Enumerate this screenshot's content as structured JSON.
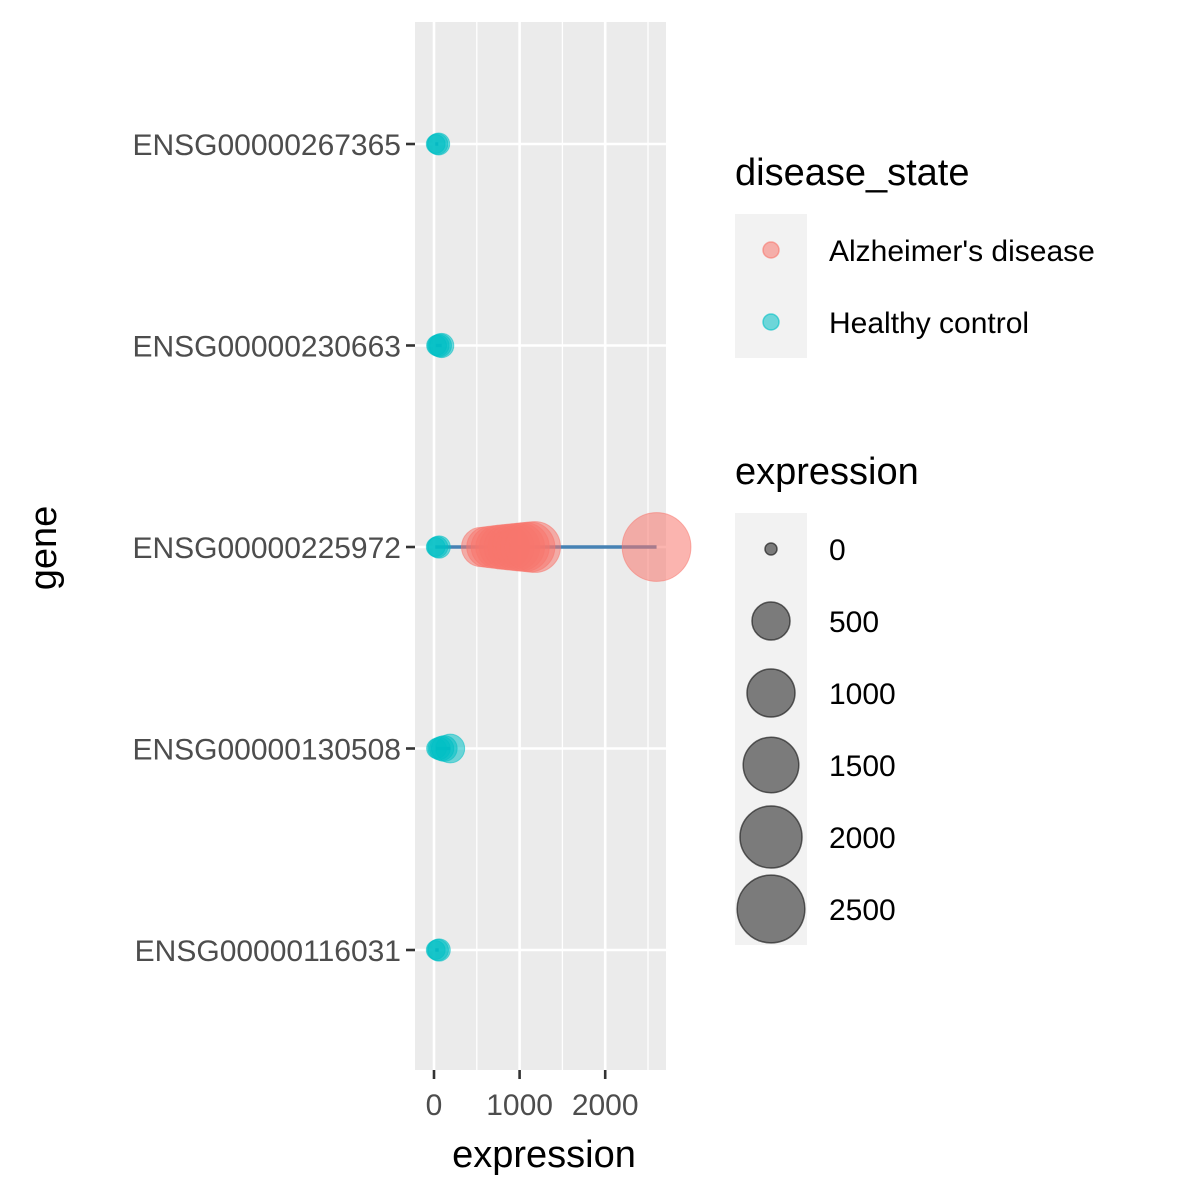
{
  "chart_data": {
    "type": "scatter",
    "title": "",
    "xlabel": "expression",
    "ylabel": "gene",
    "xlim": [
      -100,
      2700
    ],
    "x_ticks": [
      {
        "value": 0,
        "label": "0"
      },
      {
        "value": 1000,
        "label": "1000"
      },
      {
        "value": 2000,
        "label": "2000"
      }
    ],
    "x_minor_ticks": [
      500,
      1500,
      2500
    ],
    "categories": [
      "ENSG00000267365",
      "ENSG00000230663",
      "ENSG00000225972",
      "ENSG00000130508",
      "ENSG00000116031"
    ],
    "grid": true,
    "legend_position": "right",
    "series": [
      {
        "name": "Alzheimer's disease",
        "color": "#F8766D",
        "points": [
          {
            "gene": "ENSG00000225972",
            "x": 550
          },
          {
            "gene": "ENSG00000225972",
            "x": 620
          },
          {
            "gene": "ENSG00000225972",
            "x": 680
          },
          {
            "gene": "ENSG00000225972",
            "x": 740
          },
          {
            "gene": "ENSG00000225972",
            "x": 790
          },
          {
            "gene": "ENSG00000225972",
            "x": 850
          },
          {
            "gene": "ENSG00000225972",
            "x": 900
          },
          {
            "gene": "ENSG00000225972",
            "x": 960
          },
          {
            "gene": "ENSG00000225972",
            "x": 1010
          },
          {
            "gene": "ENSG00000225972",
            "x": 1060
          },
          {
            "gene": "ENSG00000225972",
            "x": 1120
          },
          {
            "gene": "ENSG00000225972",
            "x": 1180
          },
          {
            "gene": "ENSG00000225972",
            "x": 2600
          }
        ]
      },
      {
        "name": "Healthy control",
        "color": "#00BFC4",
        "points": [
          {
            "gene": "ENSG00000267365",
            "x": 20
          },
          {
            "gene": "ENSG00000267365",
            "x": 40
          },
          {
            "gene": "ENSG00000267365",
            "x": 55
          },
          {
            "gene": "ENSG00000230663",
            "x": 30
          },
          {
            "gene": "ENSG00000230663",
            "x": 50
          },
          {
            "gene": "ENSG00000230663",
            "x": 70
          },
          {
            "gene": "ENSG00000230663",
            "x": 90
          },
          {
            "gene": "ENSG00000225972",
            "x": 20
          },
          {
            "gene": "ENSG00000225972",
            "x": 40
          },
          {
            "gene": "ENSG00000225972",
            "x": 60
          },
          {
            "gene": "ENSG00000130508",
            "x": 30
          },
          {
            "gene": "ENSG00000130508",
            "x": 60
          },
          {
            "gene": "ENSG00000130508",
            "x": 90
          },
          {
            "gene": "ENSG00000130508",
            "x": 120
          },
          {
            "gene": "ENSG00000130508",
            "x": 190
          },
          {
            "gene": "ENSG00000116031",
            "x": 20
          },
          {
            "gene": "ENSG00000116031",
            "x": 45
          },
          {
            "gene": "ENSG00000116031",
            "x": 60
          }
        ]
      }
    ],
    "range_lines": {
      "color": "#4682B4",
      "items": [
        {
          "gene": "ENSG00000267365",
          "from": 15,
          "to": 50
        },
        {
          "gene": "ENSG00000230663",
          "from": 20,
          "to": 90
        },
        {
          "gene": "ENSG00000225972",
          "from": 15,
          "to": 2600
        },
        {
          "gene": "ENSG00000130508",
          "from": 25,
          "to": 190
        },
        {
          "gene": "ENSG00000116031",
          "from": 15,
          "to": 55
        }
      ]
    },
    "legends": {
      "color": {
        "title": "disease_state",
        "entries": [
          {
            "label": "Alzheimer's disease",
            "color": "#F8766D"
          },
          {
            "label": "Healthy control",
            "color": "#00BFC4"
          }
        ]
      },
      "size": {
        "title": "expression",
        "color": "#3a3a3a",
        "entries": [
          {
            "label": "0",
            "value": 0
          },
          {
            "label": "500",
            "value": 500
          },
          {
            "label": "1000",
            "value": 1000
          },
          {
            "label": "1500",
            "value": 1500
          },
          {
            "label": "2000",
            "value": 2000
          },
          {
            "label": "2500",
            "value": 2500
          }
        ]
      }
    }
  }
}
